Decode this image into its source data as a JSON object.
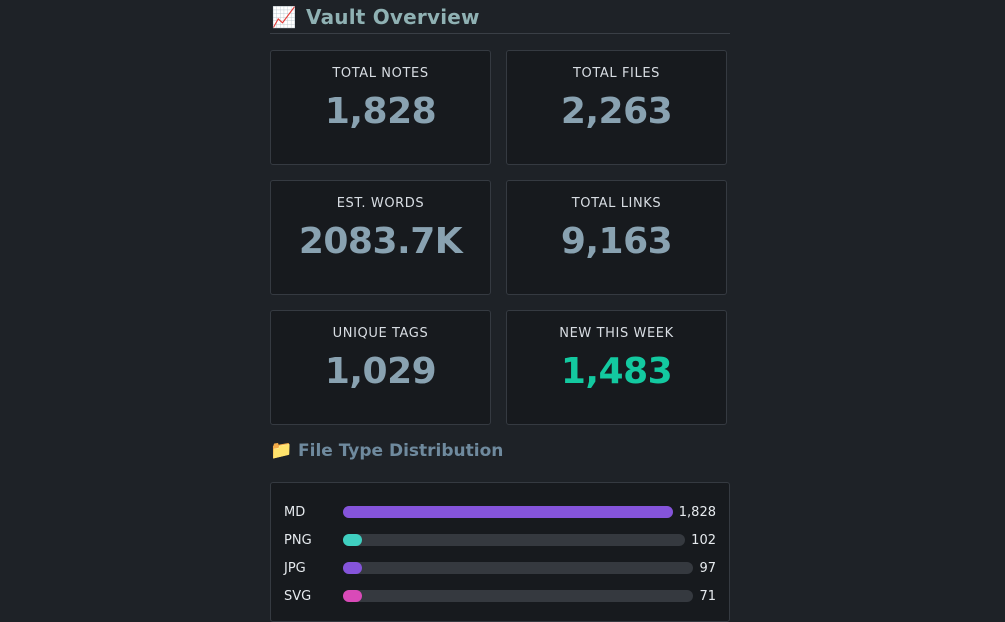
{
  "overview": {
    "emoji": "📈",
    "title": "Vault Overview"
  },
  "stats": [
    {
      "label": "TOTAL NOTES",
      "value": "1,828"
    },
    {
      "label": "TOTAL FILES",
      "value": "2,263"
    },
    {
      "label": "EST. WORDS",
      "value": "2083.7K"
    },
    {
      "label": "TOTAL LINKS",
      "value": "9,163"
    },
    {
      "label": "UNIQUE TAGS",
      "value": "1,029"
    },
    {
      "label": "NEW THIS WEEK",
      "value": "1,483"
    }
  ],
  "distribution": {
    "emoji": "📁",
    "title": "File Type Distribution",
    "items": [
      {
        "ext": "MD",
        "count": "1,828",
        "fraction": 1.0,
        "color": "#8554db"
      },
      {
        "ext": "PNG",
        "count": "102",
        "fraction": 0.056,
        "color": "#3fcfc0"
      },
      {
        "ext": "JPG",
        "count": "97",
        "fraction": 0.053,
        "color": "#8554db"
      },
      {
        "ext": "SVG",
        "count": "71",
        "fraction": 0.039,
        "color": "#d94ab8"
      }
    ]
  }
}
